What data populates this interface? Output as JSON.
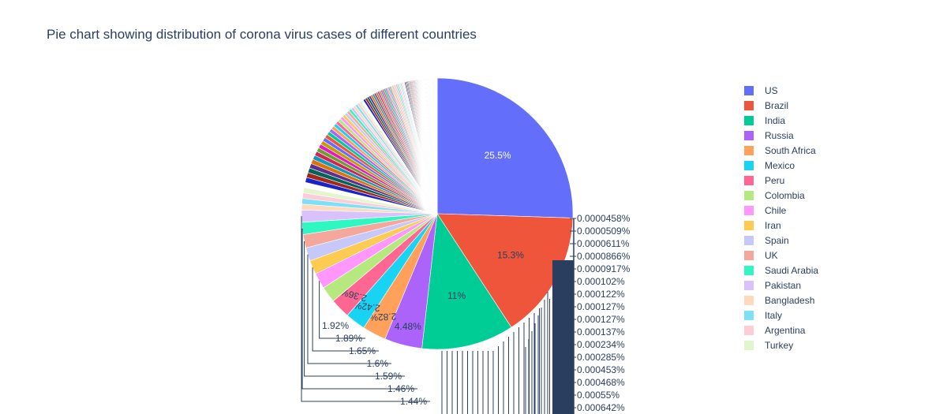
{
  "chart_data": {
    "type": "pie",
    "title": "Pie chart showing distribution of corona virus cases of different countries",
    "legend_placement": "right",
    "legend": [
      {
        "name": "US",
        "color": "#636efa"
      },
      {
        "name": "Brazil",
        "color": "#EF553B"
      },
      {
        "name": "India",
        "color": "#00cc96"
      },
      {
        "name": "Russia",
        "color": "#ab63fa"
      },
      {
        "name": "South Africa",
        "color": "#FFA15A"
      },
      {
        "name": "Mexico",
        "color": "#19d3f3"
      },
      {
        "name": "Peru",
        "color": "#FF6692"
      },
      {
        "name": "Colombia",
        "color": "#B6E880"
      },
      {
        "name": "Chile",
        "color": "#FF97FF"
      },
      {
        "name": "Iran",
        "color": "#FECB52"
      },
      {
        "name": "Spain",
        "color": "#c6c8fa"
      },
      {
        "name": "UK",
        "color": "#f4a79b"
      },
      {
        "name": "Saudi Arabia",
        "color": "#2ff7c1"
      },
      {
        "name": "Pakistan",
        "color": "#d9c2fc"
      },
      {
        "name": "Bangladesh",
        "color": "#ffd9bd"
      },
      {
        "name": "Italy",
        "color": "#7de0f5"
      },
      {
        "name": "Argentina",
        "color": "#fcccd9"
      },
      {
        "name": "Turkey",
        "color": "#e2f5cc"
      }
    ],
    "major_slices": [
      {
        "value": 25.5,
        "label": "25.5%",
        "color": "#636efa"
      },
      {
        "value": 15.3,
        "label": "15.3%",
        "color": "#EF553B"
      },
      {
        "value": 11,
        "label": "11%",
        "color": "#00cc96"
      },
      {
        "value": 4.48,
        "label": "4.48%",
        "color": "#ab63fa"
      },
      {
        "value": 2.82,
        "label": "2.82%",
        "color": "#FFA15A"
      },
      {
        "value": 2.42,
        "label": "2.42%",
        "color": "#19d3f3"
      },
      {
        "value": 2.36,
        "label": "2.36%",
        "color": "#FF6692"
      }
    ],
    "small_slices": [
      {
        "value": 1.92,
        "label": "1.92%",
        "color": "#B6E880"
      },
      {
        "value": 1.89,
        "label": "1.89%",
        "color": "#FF97FF"
      },
      {
        "value": 1.65,
        "label": "1.65%",
        "color": "#FECB52"
      },
      {
        "value": 1.6,
        "label": "1.6%",
        "color": "#c6c8fa"
      },
      {
        "value": 1.59,
        "label": "1.59%",
        "color": "#f4a79b"
      },
      {
        "value": 1.46,
        "label": "1.46%",
        "color": "#2ff7c1"
      },
      {
        "value": 1.44,
        "label": "1.44%",
        "color": "#d9c2fc"
      }
    ],
    "tail_labels": [
      "0.0000458%",
      "0.0000509%",
      "0.0000611%",
      "0.0000866%",
      "0.0000917%",
      "0.000102%",
      "0.000122%",
      "0.000127%",
      "0.000127%",
      "0.000137%",
      "0.000234%",
      "0.000285%",
      "0.000453%",
      "0.000468%",
      "0.00055%",
      "0.000642%"
    ],
    "palette": [
      "#ffd9bd",
      "#7de0f5",
      "#fcccd9",
      "#e2f5cc",
      "#ffffff",
      "#1724c8",
      "#a3271a",
      "#00665a",
      "#5d2f8f",
      "#e0720c",
      "#1599bb",
      "#d02356",
      "#6c9e32",
      "#e61ac4",
      "#c99a06",
      "#636efa",
      "#EF553B",
      "#00cc96",
      "#ab63fa",
      "#FFA15A",
      "#19d3f3",
      "#FF6692",
      "#B6E880",
      "#FF97FF",
      "#FECB52",
      "#c6c8fa",
      "#f4a79b",
      "#2ff7c1",
      "#d9c2fc"
    ]
  }
}
